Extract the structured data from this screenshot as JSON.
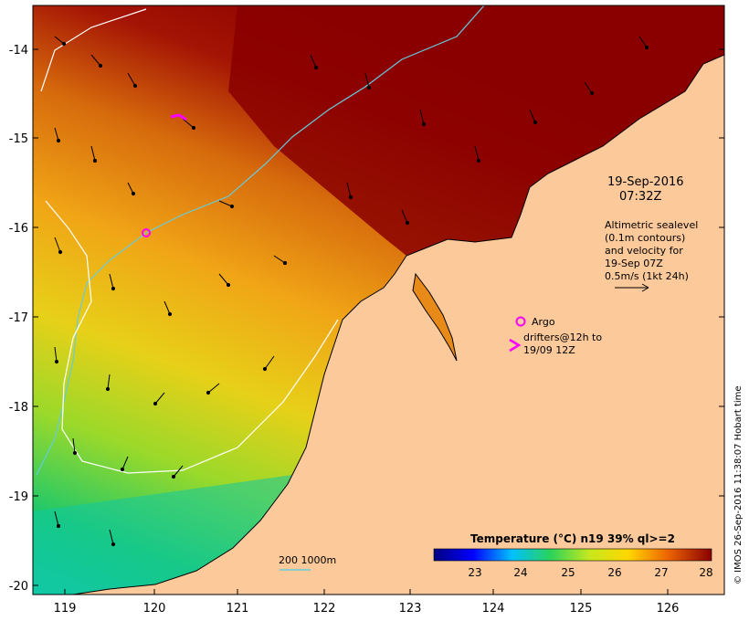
{
  "map": {
    "lon_ticks": [
      "119",
      "120",
      "121",
      "122",
      "123",
      "124",
      "125",
      "126"
    ],
    "lat_ticks": [
      "-14",
      "-15",
      "-16",
      "-17",
      "-18",
      "-19",
      "-20"
    ]
  },
  "annotations": {
    "date": "19-Sep-2016",
    "time": "07:32Z",
    "altimetry_lines": [
      "Altimetric sealevel",
      "(0.1m contours)",
      "and velocity for",
      "19-Sep 07Z",
      "0.5m/s (1kt 24h)"
    ],
    "argo_label": "Argo",
    "drifter_lines": [
      "drifters@12h to",
      "19/09 12Z"
    ],
    "bathy_label": "200  1000m",
    "credit": "© IMOS 26-Sep-2016 11:38:07 Hobart time"
  },
  "colorbar": {
    "title": "Temperature (°C) n19 39% ql>=2",
    "ticks": [
      "23",
      "24",
      "25",
      "26",
      "27",
      "28"
    ],
    "range": [
      22.2,
      28.1
    ]
  },
  "colors": {
    "land": "#fbc99a",
    "coast": "#000000",
    "bathy_200": "#66ccdd",
    "bathy_1000": "#ffffff",
    "argo": "#ff00ff",
    "drifter": "#ff00ff"
  }
}
